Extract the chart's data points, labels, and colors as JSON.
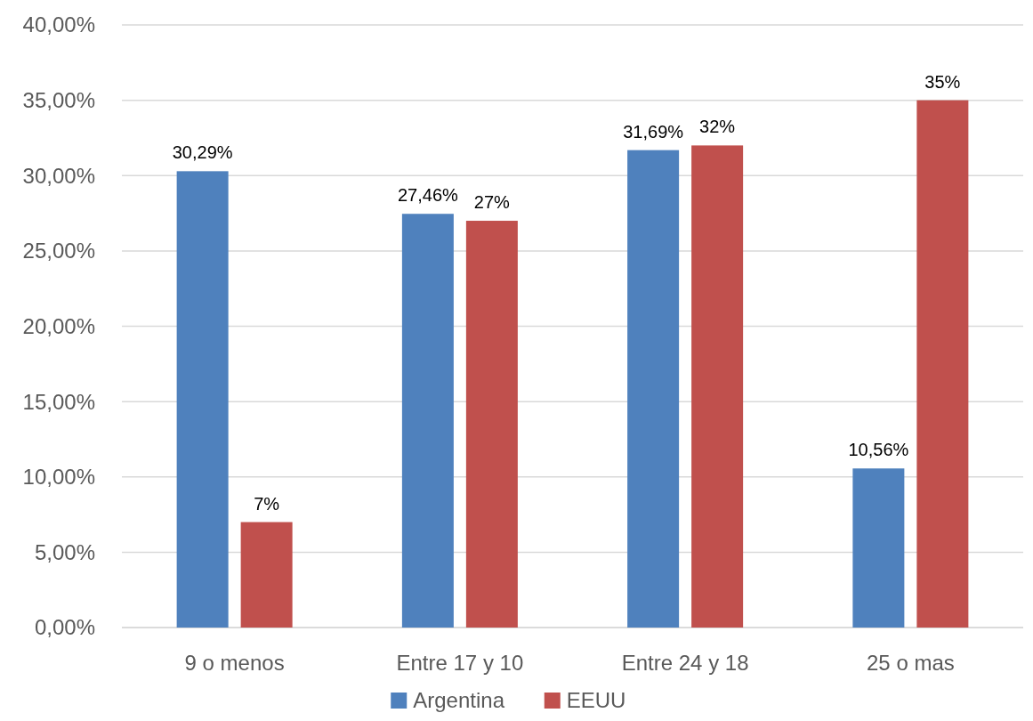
{
  "chart_data": {
    "type": "bar",
    "categories": [
      "9 o menos",
      "Entre 17 y 10",
      "Entre 24 y 18",
      "25 o mas"
    ],
    "series": [
      {
        "name": "Argentina",
        "color": "#4f81bd",
        "values": [
          30.29,
          27.46,
          31.69,
          10.56
        ],
        "value_labels": [
          "30,29%",
          "27,46%",
          "31,69%",
          "10,56%"
        ]
      },
      {
        "name": "EEUU",
        "color": "#c0504d",
        "values": [
          7,
          27,
          32,
          35
        ],
        "value_labels": [
          "7%",
          "27%",
          "32%",
          "35%"
        ]
      }
    ],
    "ylim": [
      0,
      40
    ],
    "yticks": [
      {
        "value": 0,
        "label": "0,00%"
      },
      {
        "value": 5,
        "label": "5,00%"
      },
      {
        "value": 10,
        "label": "10,00%"
      },
      {
        "value": 15,
        "label": "15,00%"
      },
      {
        "value": 20,
        "label": "20,00%"
      },
      {
        "value": 25,
        "label": "25,00%"
      },
      {
        "value": 30,
        "label": "30,00%"
      },
      {
        "value": 35,
        "label": "35,00%"
      },
      {
        "value": 40,
        "label": "40,00%"
      }
    ],
    "grid": "y",
    "legend": "bottom"
  }
}
